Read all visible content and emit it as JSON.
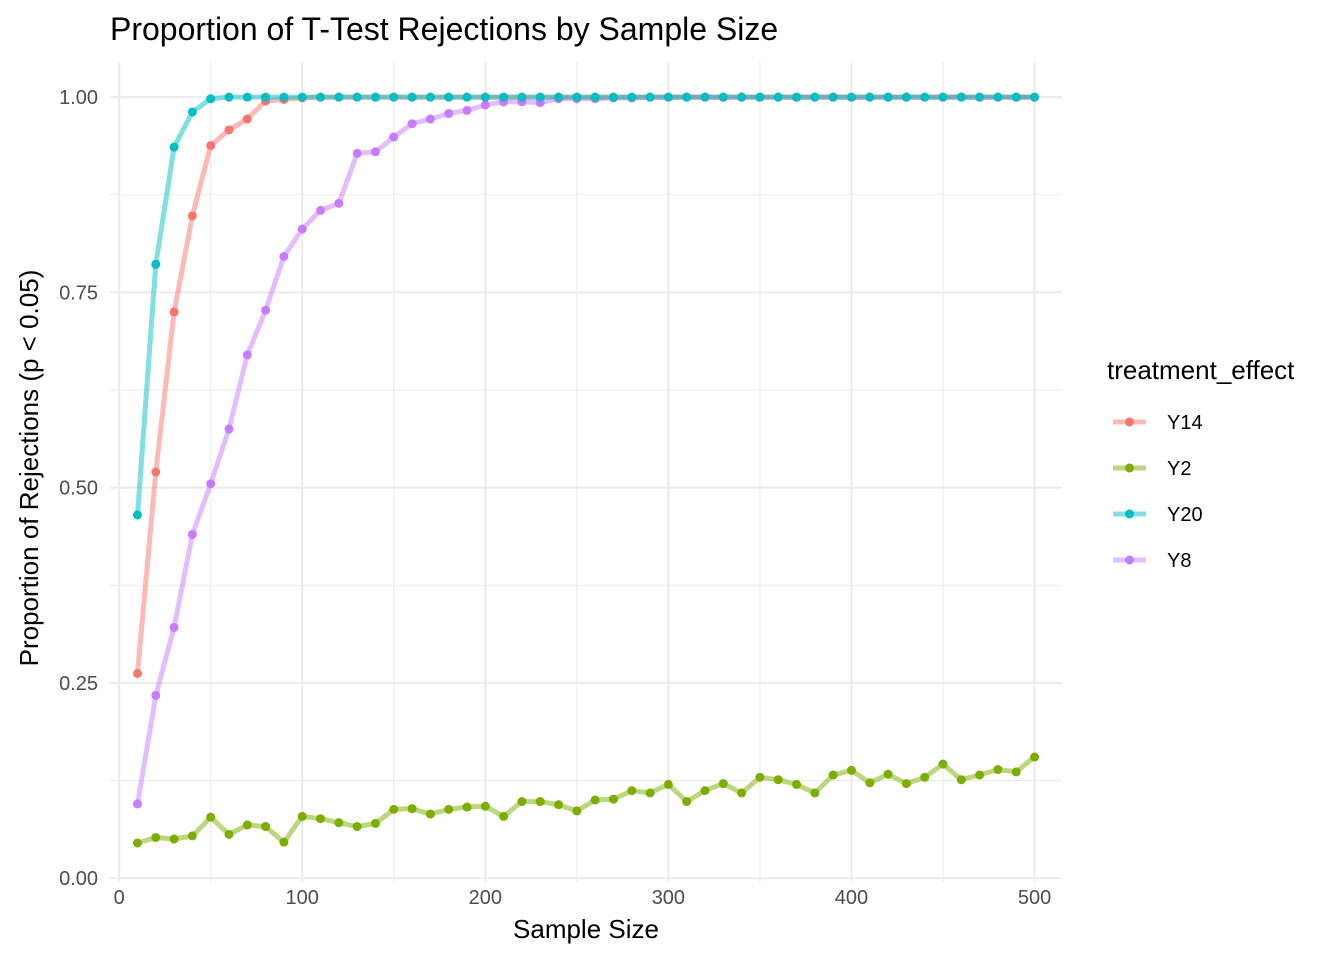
{
  "chart_data": {
    "type": "line",
    "title": "Proportion of T-Test Rejections by Sample Size",
    "xlabel": "Sample Size",
    "ylabel": "Proportion of Rejections (p < 0.05)",
    "xlim": [
      -5,
      515
    ],
    "ylim": [
      -0.005,
      1.045
    ],
    "x_ticks": [
      0,
      100,
      200,
      300,
      400,
      500
    ],
    "x_tick_labels": [
      "0",
      "100",
      "200",
      "300",
      "400",
      "500"
    ],
    "y_ticks": [
      0,
      0.25,
      0.5,
      0.75,
      1
    ],
    "y_tick_labels": [
      "0.00",
      "0.25",
      "0.50",
      "0.75",
      "1.00"
    ],
    "grid": true,
    "legend": {
      "title": "treatment_effect",
      "position": "right"
    },
    "x": [
      10,
      20,
      30,
      40,
      50,
      60,
      70,
      80,
      90,
      100,
      110,
      120,
      130,
      140,
      150,
      160,
      170,
      180,
      190,
      200,
      210,
      220,
      230,
      240,
      250,
      260,
      270,
      280,
      290,
      300,
      310,
      320,
      330,
      340,
      350,
      360,
      370,
      380,
      390,
      400,
      410,
      420,
      430,
      440,
      450,
      460,
      470,
      480,
      490,
      500
    ],
    "series": [
      {
        "name": "Y14",
        "color": "#F8766D",
        "values": [
          0.262,
          0.52,
          0.725,
          0.848,
          0.938,
          0.958,
          0.972,
          0.995,
          0.997,
          0.999,
          1,
          1,
          1,
          1,
          1,
          1,
          1,
          1,
          1,
          1,
          1,
          1,
          1,
          1,
          1,
          1,
          1,
          1,
          1,
          1,
          1,
          1,
          1,
          1,
          1,
          1,
          1,
          1,
          1,
          1,
          1,
          1,
          1,
          1,
          1,
          1,
          1,
          1,
          1,
          1
        ]
      },
      {
        "name": "Y2",
        "color": "#7CAE00",
        "values": [
          0.045,
          0.052,
          0.05,
          0.054,
          0.078,
          0.056,
          0.068,
          0.066,
          0.046,
          0.079,
          0.076,
          0.071,
          0.066,
          0.07,
          0.088,
          0.089,
          0.082,
          0.088,
          0.091,
          0.092,
          0.079,
          0.098,
          0.098,
          0.094,
          0.086,
          0.1,
          0.101,
          0.112,
          0.109,
          0.12,
          0.098,
          0.112,
          0.121,
          0.109,
          0.129,
          0.126,
          0.12,
          0.109,
          0.132,
          0.138,
          0.122,
          0.133,
          0.121,
          0.129,
          0.146,
          0.126,
          0.132,
          0.139,
          0.136,
          0.155
        ]
      },
      {
        "name": "Y20",
        "color": "#00BFC4",
        "values": [
          0.465,
          0.786,
          0.936,
          0.981,
          0.998,
          1,
          1,
          1,
          1,
          1,
          1,
          1,
          1,
          1,
          1,
          1,
          1,
          1,
          1,
          1,
          1,
          1,
          1,
          1,
          1,
          1,
          1,
          1,
          1,
          1,
          1,
          1,
          1,
          1,
          1,
          1,
          1,
          1,
          1,
          1,
          1,
          1,
          1,
          1,
          1,
          1,
          1,
          1,
          1,
          1
        ]
      },
      {
        "name": "Y8",
        "color": "#C77CFF",
        "values": [
          0.095,
          0.234,
          0.321,
          0.44,
          0.505,
          0.575,
          0.67,
          0.727,
          0.796,
          0.831,
          0.855,
          0.864,
          0.928,
          0.93,
          0.949,
          0.966,
          0.972,
          0.979,
          0.983,
          0.99,
          0.994,
          0.994,
          0.993,
          0.998,
          0.998,
          0.998,
          0.999,
          0.999,
          1,
          1,
          1,
          1,
          1,
          1,
          1,
          1,
          1,
          1,
          1,
          1,
          1,
          1,
          1,
          1,
          1,
          1,
          1,
          1,
          1,
          1
        ]
      }
    ]
  }
}
